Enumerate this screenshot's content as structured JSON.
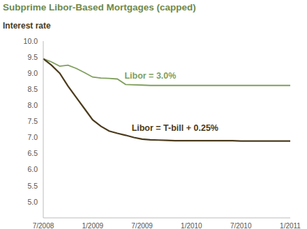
{
  "chart_data": {
    "type": "line",
    "title": "Subprime Libor-Based Mortgages (capped)",
    "subtitle": "Interest rate",
    "categories": [
      "7/2008",
      null,
      null,
      null,
      null,
      null,
      "1/2009",
      null,
      null,
      null,
      null,
      null,
      "7/2009",
      null,
      null,
      null,
      null,
      null,
      "1/2010",
      null,
      null,
      null,
      null,
      null,
      "7/2010",
      null,
      null,
      null,
      null,
      null,
      "1/2011"
    ],
    "series": [
      {
        "name": "Libor = 3.0%",
        "color": "#7f9f5c",
        "values": [
          9.45,
          9.35,
          9.22,
          9.25,
          9.15,
          9.02,
          8.88,
          8.85,
          8.84,
          8.82,
          8.65,
          8.64,
          8.63,
          8.62,
          8.62,
          8.62,
          8.62,
          8.62,
          8.62,
          8.62,
          8.62,
          8.62,
          8.62,
          8.62,
          8.62,
          8.62,
          8.62,
          8.62,
          8.62,
          8.62,
          8.62
        ]
      },
      {
        "name": "Libor = T-bill + 0.25%",
        "color": "#4b3b1c",
        "values": [
          9.45,
          9.25,
          9.0,
          8.6,
          8.25,
          7.9,
          7.55,
          7.35,
          7.2,
          7.13,
          7.07,
          7.0,
          6.95,
          6.93,
          6.92,
          6.91,
          6.9,
          6.9,
          6.9,
          6.9,
          6.9,
          6.9,
          6.9,
          6.9,
          6.89,
          6.89,
          6.89,
          6.89,
          6.89,
          6.89,
          6.89
        ]
      }
    ],
    "ylim": [
      4.5,
      10.0
    ],
    "yticks": [
      {
        "value": 5,
        "label": "5.0"
      },
      {
        "value": 5.5,
        "label": "5.5"
      },
      {
        "value": 6,
        "label": "6.0"
      },
      {
        "value": 6.5,
        "label": "6.5"
      },
      {
        "value": 7,
        "label": "7.0"
      },
      {
        "value": 7.5,
        "label": "7.5"
      },
      {
        "value": 8,
        "label": "8.0"
      },
      {
        "value": 8.5,
        "label": "8.5"
      },
      {
        "value": 9,
        "label": "9.0"
      },
      {
        "value": 9.5,
        "label": "9.5"
      },
      {
        "value": 10,
        "label": "10.0"
      }
    ],
    "grid": false
  }
}
